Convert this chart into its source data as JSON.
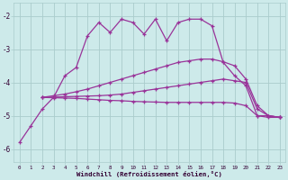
{
  "xlabel": "Windchill (Refroidissement éolien,°C)",
  "xlim": [
    -0.5,
    23.5
  ],
  "ylim": [
    -6.4,
    -1.6
  ],
  "yticks": [
    -6,
    -5,
    -4,
    -3,
    -2
  ],
  "xticks": [
    0,
    1,
    2,
    3,
    4,
    5,
    6,
    7,
    8,
    9,
    10,
    11,
    12,
    13,
    14,
    15,
    16,
    17,
    18,
    19,
    20,
    21,
    22,
    23
  ],
  "bg_color": "#cdeaea",
  "grid_color": "#aacccc",
  "line_color": "#993399",
  "line1_x": [
    0,
    1,
    2,
    3,
    4,
    5,
    6,
    7,
    8,
    9,
    10,
    11,
    12,
    13,
    14,
    15,
    16,
    17,
    18,
    19,
    20,
    21,
    22,
    23
  ],
  "line1_y": [
    -5.8,
    -5.3,
    -4.8,
    -4.45,
    -3.8,
    -3.55,
    -2.6,
    -2.2,
    -2.5,
    -2.1,
    -2.2,
    -2.55,
    -2.1,
    -2.75,
    -2.2,
    -2.1,
    -2.1,
    -2.3,
    -3.4,
    -3.8,
    -4.1,
    -5.0,
    -5.05,
    -5.05
  ],
  "line2_x": [
    2,
    3,
    4,
    5,
    6,
    7,
    8,
    9,
    10,
    11,
    12,
    13,
    14,
    15,
    16,
    17,
    18,
    19,
    20,
    21,
    22,
    23
  ],
  "line2_y": [
    -4.45,
    -4.4,
    -4.35,
    -4.28,
    -4.2,
    -4.1,
    -4.0,
    -3.9,
    -3.8,
    -3.7,
    -3.6,
    -3.5,
    -3.4,
    -3.35,
    -3.3,
    -3.3,
    -3.38,
    -3.5,
    -3.9,
    -4.7,
    -5.0,
    -5.05
  ],
  "line3_x": [
    2,
    3,
    4,
    5,
    6,
    7,
    8,
    9,
    10,
    11,
    12,
    13,
    14,
    15,
    16,
    17,
    18,
    19,
    20,
    21,
    22,
    23
  ],
  "line3_y": [
    -4.45,
    -4.44,
    -4.43,
    -4.42,
    -4.41,
    -4.4,
    -4.38,
    -4.35,
    -4.3,
    -4.25,
    -4.2,
    -4.15,
    -4.1,
    -4.05,
    -4.0,
    -3.95,
    -3.9,
    -3.95,
    -4.0,
    -4.8,
    -5.0,
    -5.05
  ],
  "line4_x": [
    2,
    3,
    4,
    5,
    6,
    7,
    8,
    9,
    10,
    11,
    12,
    13,
    14,
    15,
    16,
    17,
    18,
    19,
    20,
    21,
    22,
    23
  ],
  "line4_y": [
    -4.45,
    -4.46,
    -4.47,
    -4.48,
    -4.5,
    -4.52,
    -4.54,
    -4.55,
    -4.57,
    -4.58,
    -4.59,
    -4.6,
    -4.6,
    -4.6,
    -4.6,
    -4.6,
    -4.6,
    -4.62,
    -4.7,
    -5.0,
    -5.0,
    -5.05
  ]
}
